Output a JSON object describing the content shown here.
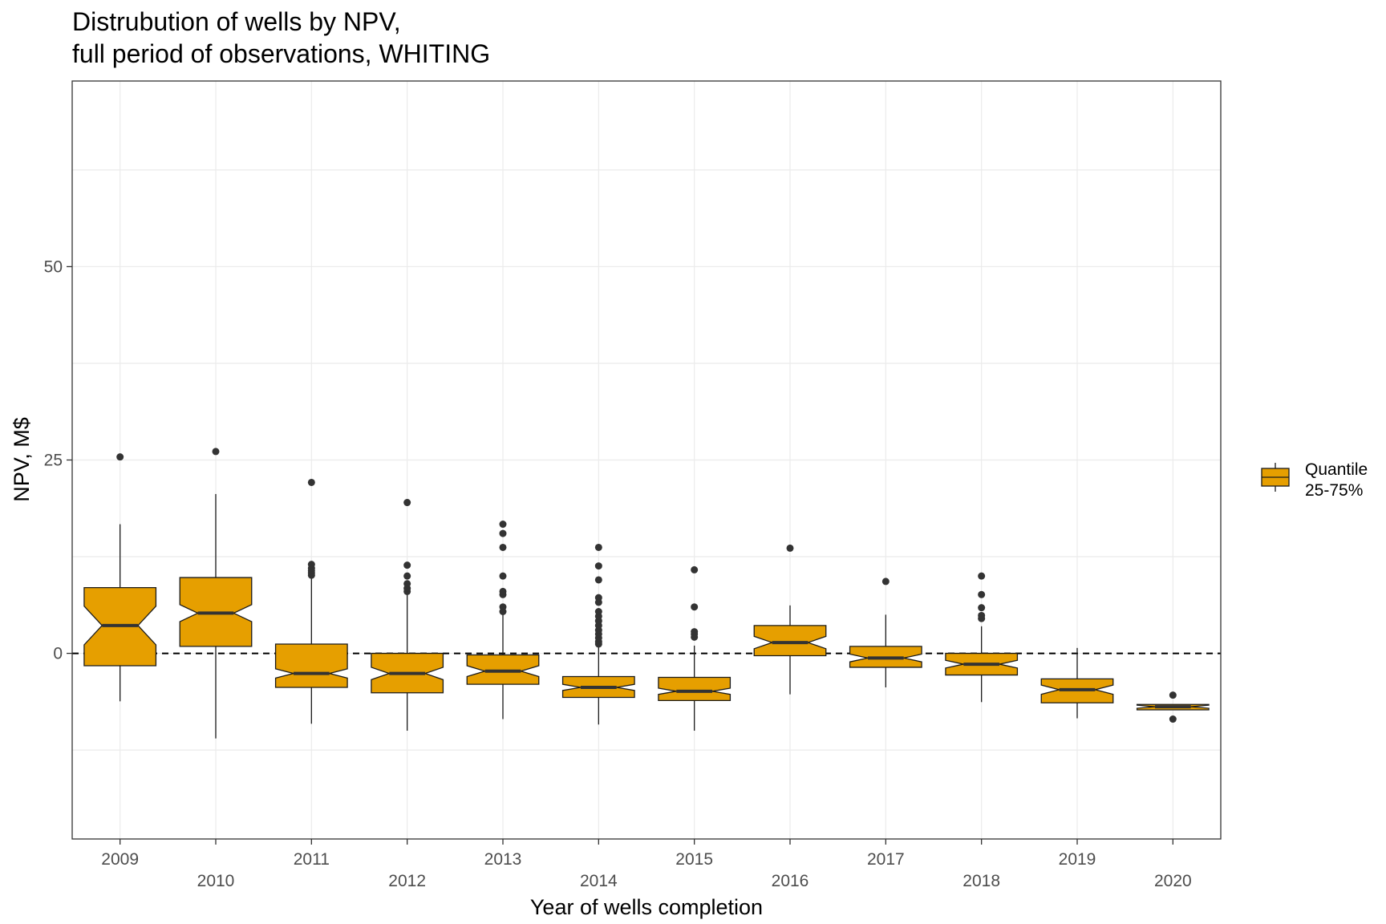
{
  "chart_data": {
    "type": "box",
    "title": [
      "Distrubution of wells by NPV,",
      "full period of observations, WHITING"
    ],
    "xlabel": "Year of wells completion",
    "ylabel": "NPV, M$",
    "ylim": [
      -24,
      74
    ],
    "yticks": [
      0,
      25,
      50
    ],
    "y_gridlines": [
      -12.5,
      0,
      12.5,
      25,
      37.5,
      50,
      62.5
    ],
    "grid": true,
    "reference_line": {
      "y": 0,
      "style": "dashed"
    },
    "legend": {
      "position": "right",
      "entries": [
        "Quantile",
        "25-75%"
      ]
    },
    "colors": {
      "box_fill": "#E69F00",
      "box_stroke": "#1a1a1a",
      "outlier": "#333333",
      "grid": "#ebebeb"
    },
    "categories": [
      "2009",
      "2010",
      "2011",
      "2012",
      "2013",
      "2014",
      "2015",
      "2016",
      "2017",
      "2018",
      "2019",
      "2020"
    ],
    "boxes": [
      {
        "year": "2009",
        "whisker_low": -6.2,
        "q1": -1.6,
        "median": 3.6,
        "q3": 8.5,
        "whisker_high": 16.7,
        "notch": [
          1.1,
          6.1
        ],
        "outliers": [
          25.4
        ]
      },
      {
        "year": "2010",
        "whisker_low": -11.0,
        "q1": 0.9,
        "median": 5.2,
        "q3": 9.8,
        "whisker_high": 20.6,
        "notch": [
          4.1,
          6.3
        ],
        "outliers": [
          26.1
        ]
      },
      {
        "year": "2011",
        "whisker_low": -9.1,
        "q1": -4.4,
        "median": -2.6,
        "q3": 1.2,
        "whisker_high": 9.8,
        "notch": [
          -3.2,
          -2.0
        ],
        "outliers": [
          10.1,
          10.4,
          10.7,
          11.0,
          11.5,
          22.1
        ]
      },
      {
        "year": "2012",
        "whisker_low": -10.0,
        "q1": -5.1,
        "median": -2.6,
        "q3": 0.0,
        "whisker_high": 7.7,
        "notch": [
          -3.4,
          -1.8
        ],
        "outliers": [
          8.0,
          8.4,
          9.0,
          10.0,
          11.4,
          19.5
        ]
      },
      {
        "year": "2013",
        "whisker_low": -8.5,
        "q1": -4.0,
        "median": -2.3,
        "q3": -0.2,
        "whisker_high": 5.0,
        "notch": [
          -3.0,
          -1.6
        ],
        "outliers": [
          5.4,
          6.0,
          7.6,
          8.0,
          10.0,
          13.7,
          15.5,
          16.7
        ]
      },
      {
        "year": "2014",
        "whisker_low": -9.2,
        "q1": -5.7,
        "median": -4.4,
        "q3": -3.0,
        "whisker_high": 0.9,
        "notch": [
          -4.8,
          -4.0
        ],
        "outliers": [
          1.2,
          1.5,
          2.0,
          2.5,
          3.0,
          3.6,
          4.2,
          4.8,
          5.4,
          6.6,
          7.2,
          9.5,
          11.3,
          13.7
        ]
      },
      {
        "year": "2015",
        "whisker_low": -10.0,
        "q1": -6.1,
        "median": -4.9,
        "q3": -3.1,
        "whisker_high": 1.0,
        "notch": [
          -5.3,
          -4.5
        ],
        "outliers": [
          2.1,
          2.5,
          2.8,
          6.0,
          10.8
        ]
      },
      {
        "year": "2016",
        "whisker_low": -5.3,
        "q1": -0.3,
        "median": 1.4,
        "q3": 3.6,
        "whisker_high": 6.2,
        "notch": [
          0.6,
          2.2
        ],
        "outliers": [
          13.6
        ]
      },
      {
        "year": "2017",
        "whisker_low": -4.4,
        "q1": -1.8,
        "median": -0.6,
        "q3": 0.9,
        "whisker_high": 5.0,
        "notch": [
          -1.1,
          -0.1
        ],
        "outliers": [
          9.3
        ]
      },
      {
        "year": "2018",
        "whisker_low": -6.3,
        "q1": -2.8,
        "median": -1.4,
        "q3": 0.0,
        "whisker_high": 3.5,
        "notch": [
          -1.9,
          -0.9
        ],
        "outliers": [
          4.5,
          4.9,
          5.9,
          7.6,
          10.0
        ]
      },
      {
        "year": "2019",
        "whisker_low": -8.4,
        "q1": -6.4,
        "median": -4.7,
        "q3": -3.3,
        "whisker_high": 0.7,
        "notch": [
          -5.3,
          -4.1
        ],
        "outliers": []
      },
      {
        "year": "2020",
        "whisker_low": -7.3,
        "q1": -7.3,
        "median": -6.9,
        "q3": -6.6,
        "whisker_high": -6.6,
        "notch": [
          -7.1,
          -6.7
        ],
        "outliers": [
          -5.4,
          -8.5
        ]
      }
    ]
  }
}
